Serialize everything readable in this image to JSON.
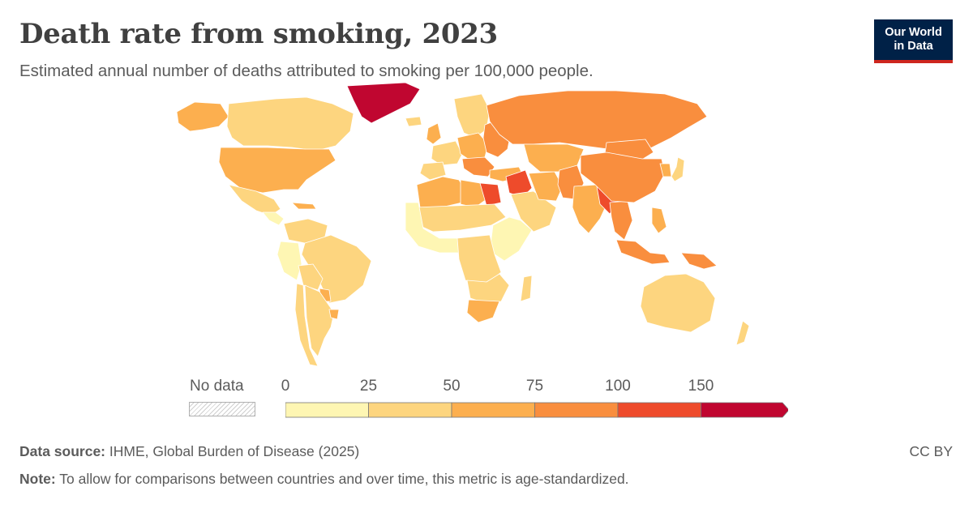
{
  "header": {
    "title": "Death rate from smoking, 2023",
    "subtitle": "Estimated annual number of deaths attributed to smoking per 100,000 people."
  },
  "logo": {
    "line1": "Our World",
    "line2": "in Data"
  },
  "legend": {
    "no_data_label": "No data",
    "bins": [
      {
        "from": 0,
        "to": 25,
        "color": "#fef6b3"
      },
      {
        "from": 25,
        "to": 50,
        "color": "#fdd57f"
      },
      {
        "from": 50,
        "to": 75,
        "color": "#fcaf4f"
      },
      {
        "from": 75,
        "to": 100,
        "color": "#f98e3e"
      },
      {
        "from": 100,
        "to": 150,
        "color": "#ee4b2b"
      },
      {
        "from": 150,
        "to": null,
        "color": "#c00630"
      }
    ],
    "tick_labels": [
      "0",
      "25",
      "50",
      "75",
      "100",
      "150"
    ]
  },
  "footer": {
    "source_label": "Data source:",
    "source_text": "IHME, Global Burden of Disease (2025)",
    "note_label": "Note:",
    "note_text": "To allow for comparisons between countries and over time, this metric is age-standardized.",
    "license": "CC BY"
  },
  "map": {
    "regions": [
      {
        "name": "greenland",
        "bin": 5
      },
      {
        "name": "alaska",
        "bin": 2
      },
      {
        "name": "canada",
        "bin": 1
      },
      {
        "name": "usa",
        "bin": 2
      },
      {
        "name": "mexico",
        "bin": 1
      },
      {
        "name": "central-america",
        "bin": 0
      },
      {
        "name": "cuba",
        "bin": 2
      },
      {
        "name": "colombia-venezuela",
        "bin": 1
      },
      {
        "name": "brazil",
        "bin": 1
      },
      {
        "name": "peru",
        "bin": 0
      },
      {
        "name": "bolivia-paraguay",
        "bin": 1
      },
      {
        "name": "paraguay",
        "bin": 2
      },
      {
        "name": "argentina",
        "bin": 1
      },
      {
        "name": "chile",
        "bin": 1
      },
      {
        "name": "uruguay",
        "bin": 2
      },
      {
        "name": "iceland",
        "bin": 1
      },
      {
        "name": "scandinavia",
        "bin": 1
      },
      {
        "name": "uk",
        "bin": 2
      },
      {
        "name": "western-europe",
        "bin": 1
      },
      {
        "name": "iberia",
        "bin": 1
      },
      {
        "name": "central-europe",
        "bin": 2
      },
      {
        "name": "eastern-europe",
        "bin": 3
      },
      {
        "name": "balkans",
        "bin": 3
      },
      {
        "name": "russia",
        "bin": 3
      },
      {
        "name": "turkey",
        "bin": 2
      },
      {
        "name": "levant-iraq",
        "bin": 4
      },
      {
        "name": "arabia",
        "bin": 1
      },
      {
        "name": "iran",
        "bin": 2
      },
      {
        "name": "central-asia",
        "bin": 2
      },
      {
        "name": "mongolia",
        "bin": 3
      },
      {
        "name": "china",
        "bin": 3
      },
      {
        "name": "korea",
        "bin": 2
      },
      {
        "name": "japan",
        "bin": 1
      },
      {
        "name": "pakistan-afghanistan",
        "bin": 3
      },
      {
        "name": "india",
        "bin": 2
      },
      {
        "name": "bangladesh-myanmar",
        "bin": 4
      },
      {
        "name": "indochina",
        "bin": 3
      },
      {
        "name": "philippines",
        "bin": 2
      },
      {
        "name": "indonesia",
        "bin": 3
      },
      {
        "name": "papua",
        "bin": 3
      },
      {
        "name": "australia",
        "bin": 1
      },
      {
        "name": "new-zealand",
        "bin": 1
      },
      {
        "name": "maghreb",
        "bin": 2
      },
      {
        "name": "libya",
        "bin": 2
      },
      {
        "name": "egypt",
        "bin": 4
      },
      {
        "name": "sahel",
        "bin": 1
      },
      {
        "name": "west-africa",
        "bin": 0
      },
      {
        "name": "east-africa",
        "bin": 0
      },
      {
        "name": "central-africa",
        "bin": 1
      },
      {
        "name": "southern-africa",
        "bin": 1
      },
      {
        "name": "south-africa",
        "bin": 2
      },
      {
        "name": "madagascar",
        "bin": 1
      }
    ]
  }
}
